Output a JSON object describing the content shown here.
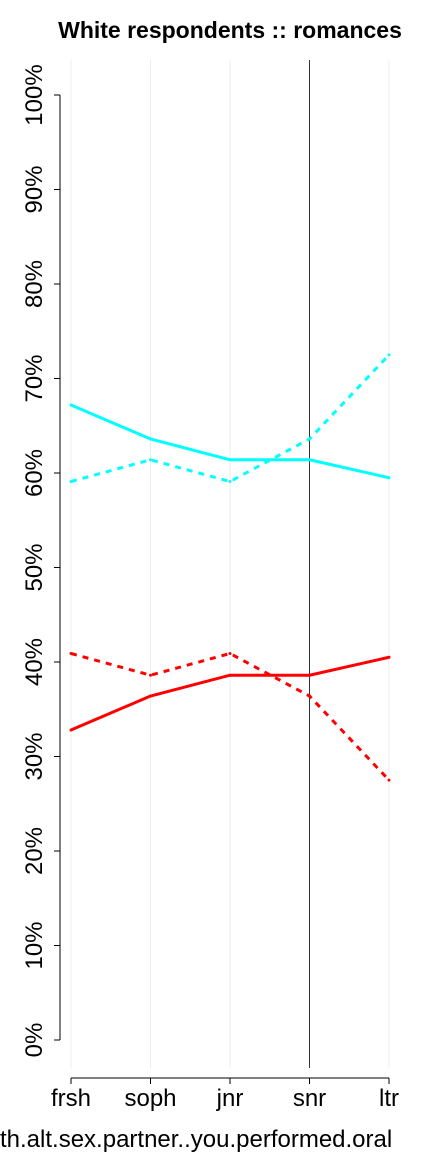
{
  "chart_data": {
    "type": "line",
    "title": "White respondents :: romances",
    "xlabel": "th.alt.sex.partner..you.performed.oral",
    "ylabel": "",
    "categories": [
      "frsh",
      "soph",
      "jnr",
      "snr",
      "ltr"
    ],
    "y_tick_labels": [
      "0%",
      "10%",
      "20%",
      "30%",
      "40%",
      "50%",
      "60%",
      "70%",
      "80%",
      "90%",
      "100%"
    ],
    "ylim": [
      0,
      100
    ],
    "vertical_marker_category": "snr",
    "grid": "vertical light grey lines at categories",
    "series": [
      {
        "color": "#00ffff",
        "style": "solid",
        "values": [
          67.2,
          63.6,
          61.4,
          61.4,
          59.5
        ]
      },
      {
        "color": "#00ffff",
        "style": "dashed",
        "values": [
          59.1,
          61.4,
          59.1,
          63.6,
          72.5
        ]
      },
      {
        "color": "#ff0000",
        "style": "solid",
        "values": [
          32.8,
          36.4,
          38.6,
          38.6,
          40.5
        ]
      },
      {
        "color": "#ff0000",
        "style": "dashed",
        "values": [
          40.9,
          38.6,
          40.9,
          36.4,
          27.5
        ]
      }
    ]
  }
}
